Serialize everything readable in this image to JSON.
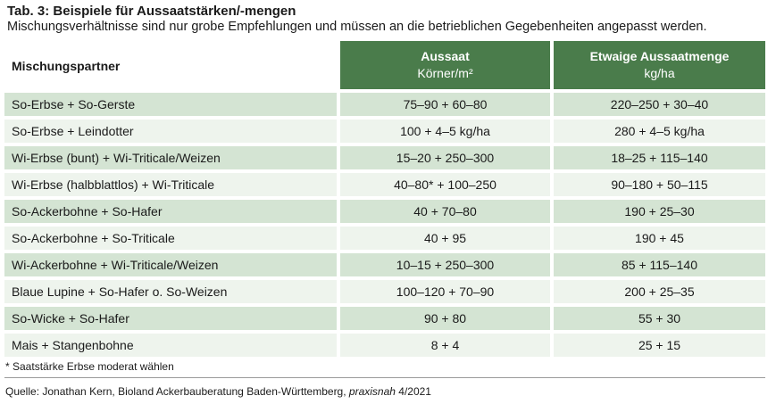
{
  "title": "Tab. 3: Beispiele für Aussaatstärken/-mengen",
  "subtitle": "Mischungsverhältnisse sind nur grobe Empfehlungen und müssen an die betrieblichen Gegebenheiten angepasst werden.",
  "table": {
    "header": {
      "col1": "Mischungspartner",
      "col2_main": "Aussaat",
      "col2_unit": "Körner/m²",
      "col3_main": "Etwaige Aussaatmenge",
      "col3_unit": "kg/ha"
    },
    "rows": [
      {
        "partner": "So-Erbse + So-Gerste",
        "aussaat": "75–90 + 60–80",
        "menge": "220–250 + 30–40"
      },
      {
        "partner": "So-Erbse + Leindotter",
        "aussaat": "100 + 4–5 kg/ha",
        "menge": "280 + 4–5 kg/ha"
      },
      {
        "partner": "Wi-Erbse (bunt) + Wi-Triticale/Weizen",
        "aussaat": "15–20 + 250–300",
        "menge": "18–25 + 115–140"
      },
      {
        "partner": "Wi-Erbse (halbblattlos) + Wi-Triticale",
        "aussaat": "40–80* + 100–250",
        "menge": "90–180 + 50–115"
      },
      {
        "partner": "So-Ackerbohne + So-Hafer",
        "aussaat": "40 + 70–80",
        "menge": "190 + 25–30"
      },
      {
        "partner": "So-Ackerbohne + So-Triticale",
        "aussaat": "40 + 95",
        "menge": "190 + 45"
      },
      {
        "partner": "Wi-Ackerbohne + Wi-Triticale/Weizen",
        "aussaat": "10–15 + 250–300",
        "menge": "85 + 115–140"
      },
      {
        "partner": "Blaue Lupine + So-Hafer o. So-Weizen",
        "aussaat": "100–120 + 70–90",
        "menge": "200 + 25–35"
      },
      {
        "partner": "So-Wicke + So-Hafer",
        "aussaat": "90 + 80",
        "menge": "55 + 30"
      },
      {
        "partner": "Mais + Stangenbohne",
        "aussaat": "8 + 4",
        "menge": "25 + 15"
      }
    ]
  },
  "footnote": "* Saatstärke Erbse moderat wählen",
  "source": {
    "prefix": "Quelle: Jonathan Kern, Bioland Ackerbauberatung Baden-Württemberg, ",
    "publication": "praxisnah",
    "suffix": " 4/2021"
  },
  "colors": {
    "header_bg": "#4a7c4b",
    "row_dark": "#d4e4d3",
    "row_light": "#eef4ed"
  }
}
